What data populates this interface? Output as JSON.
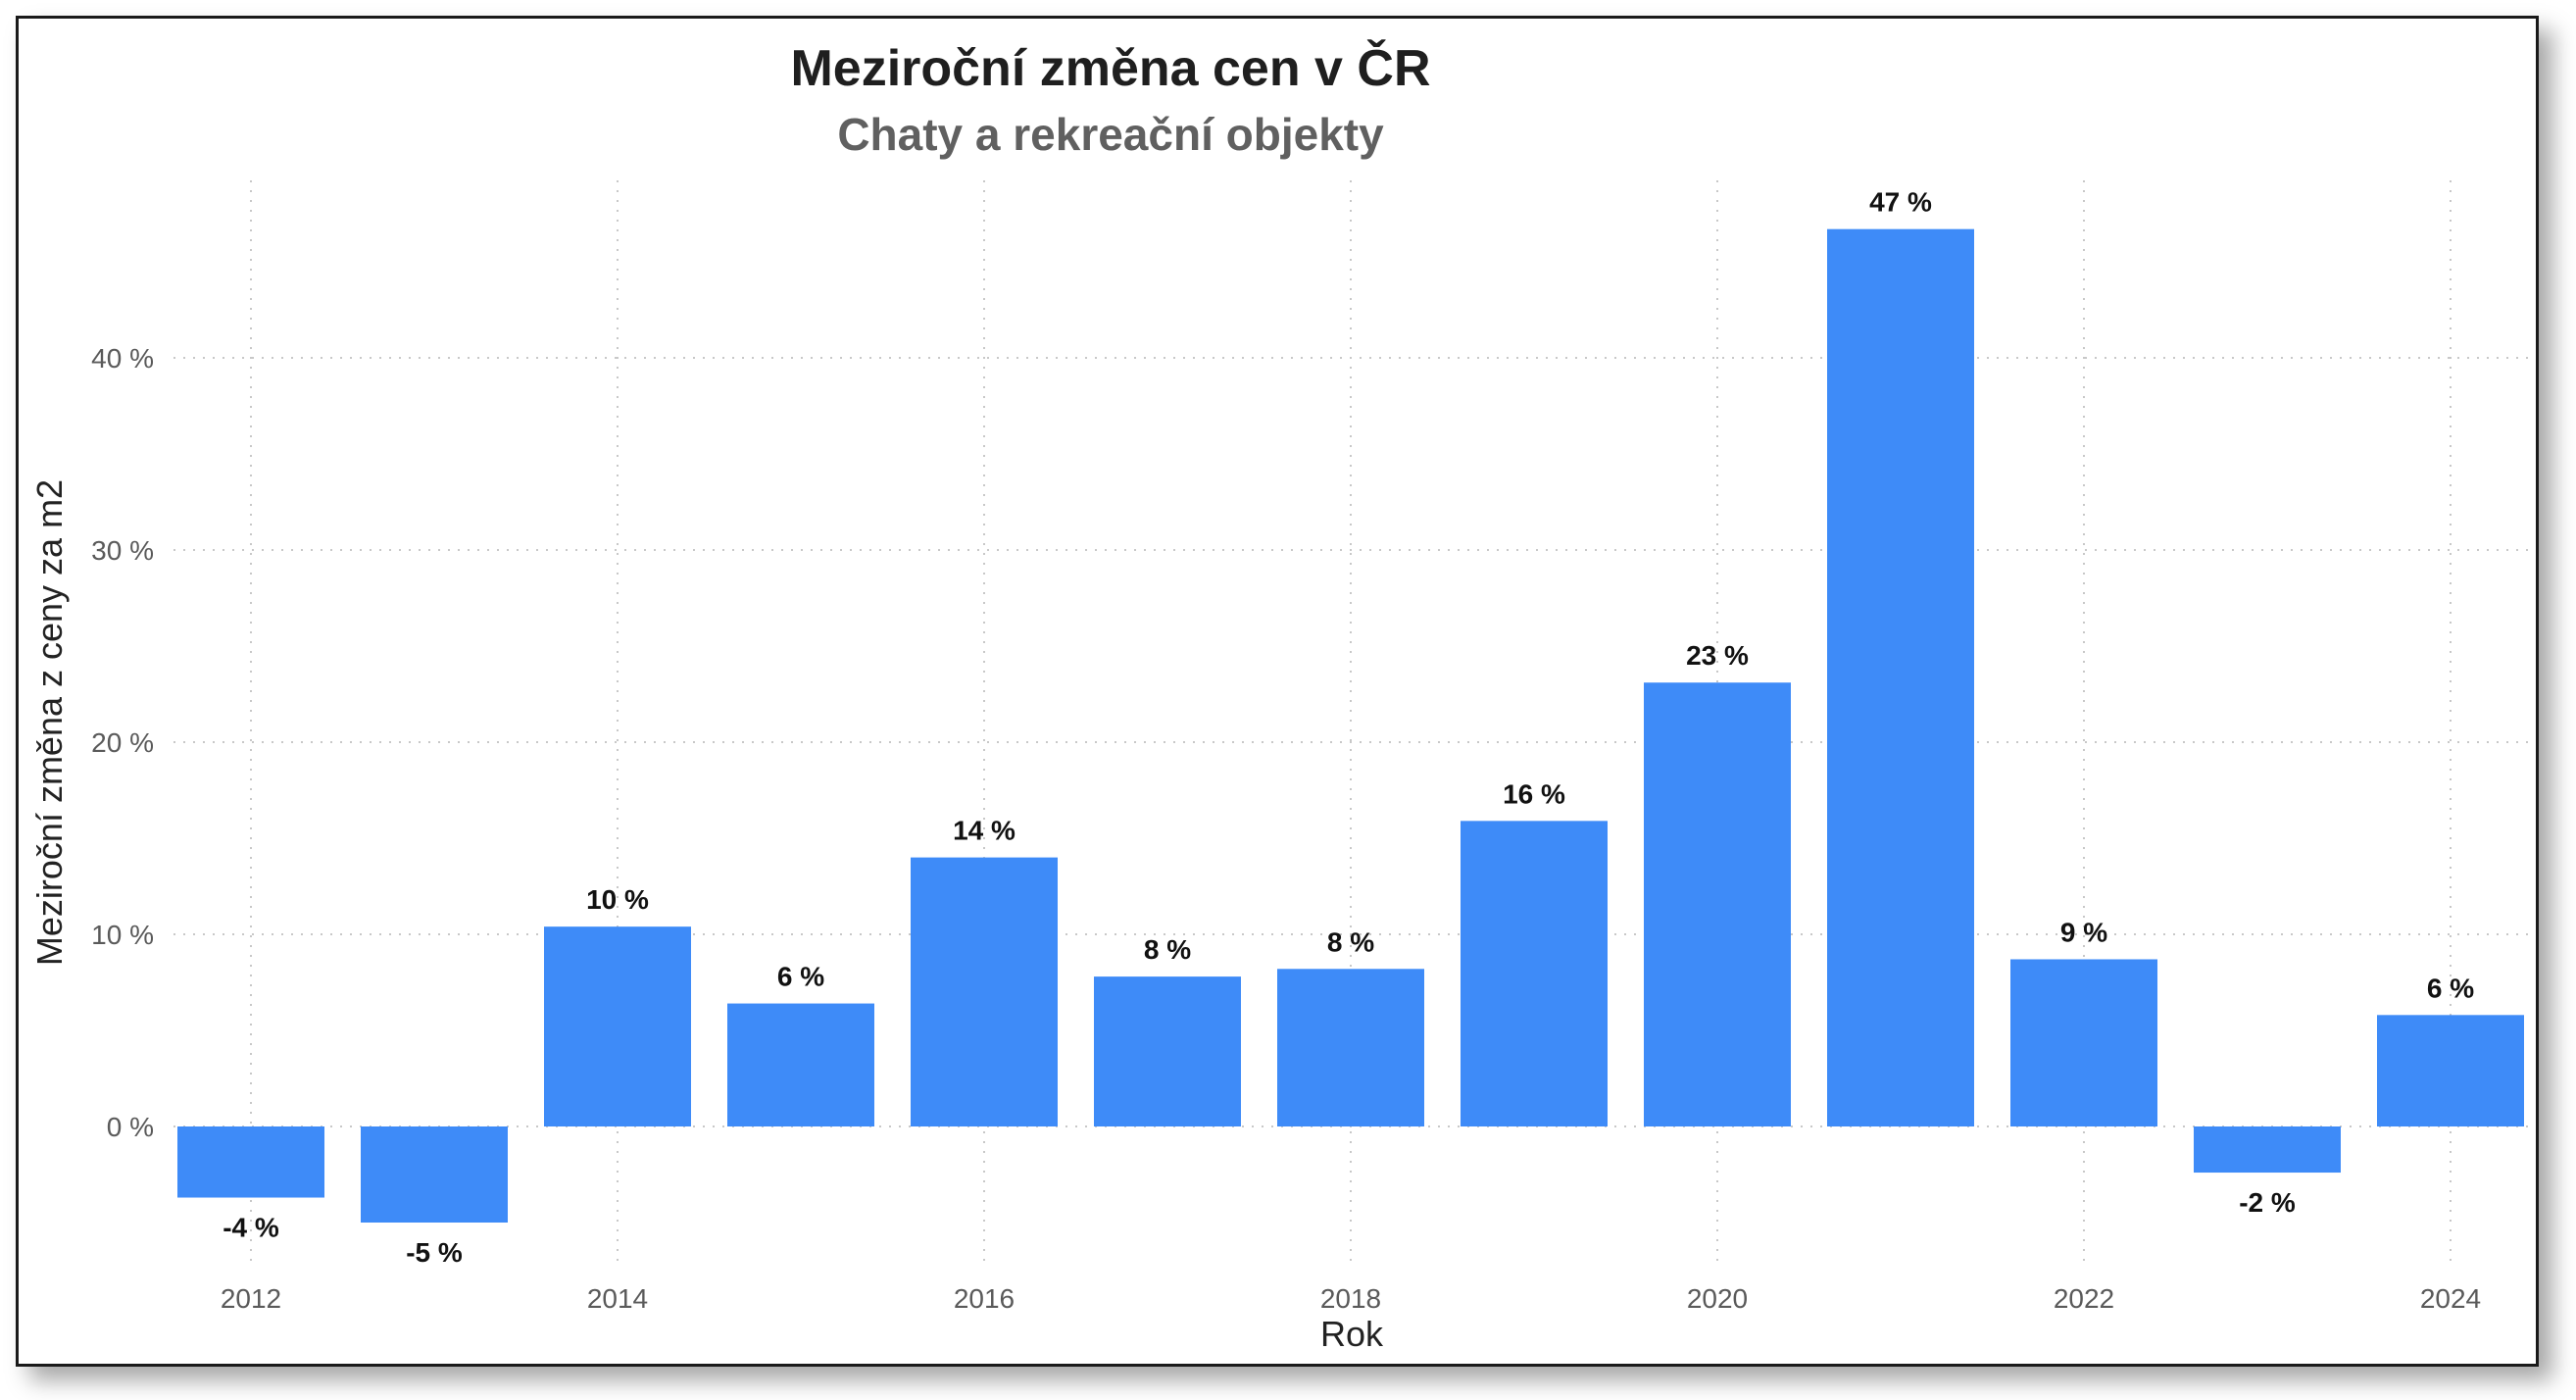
{
  "chart_data": {
    "type": "bar",
    "title": "Meziroční změna cen v ČR",
    "subtitle": "Chaty a rekreační objekty",
    "xlabel": "Rok",
    "ylabel": "Meziroční změna z ceny za m2",
    "categories": [
      "2012",
      "2013",
      "2014",
      "2015",
      "2016",
      "2017",
      "2018",
      "2019",
      "2020",
      "2021",
      "2022",
      "2023",
      "2024"
    ],
    "values": [
      -3.7,
      -5.0,
      10.4,
      6.4,
      14.0,
      7.8,
      8.2,
      15.9,
      23.1,
      46.7,
      8.7,
      -2.4,
      5.8
    ],
    "data_labels": [
      "-4 %",
      "-5 %",
      "10 %",
      "6 %",
      "14 %",
      "8 %",
      "8 %",
      "16 %",
      "23 %",
      "47 %",
      "9 %",
      "-2 %",
      "6 %"
    ],
    "x_tick_labels": [
      "2012",
      "2014",
      "2016",
      "2018",
      "2020",
      "2022",
      "2024"
    ],
    "y_ticks": [
      0,
      10,
      20,
      30,
      40
    ],
    "y_tick_labels": [
      "0 %",
      "10 %",
      "20 %",
      "30 %",
      "40 %"
    ],
    "ylim": [
      -8,
      50
    ],
    "grid": true,
    "bar_color": "#3e8bf8"
  }
}
